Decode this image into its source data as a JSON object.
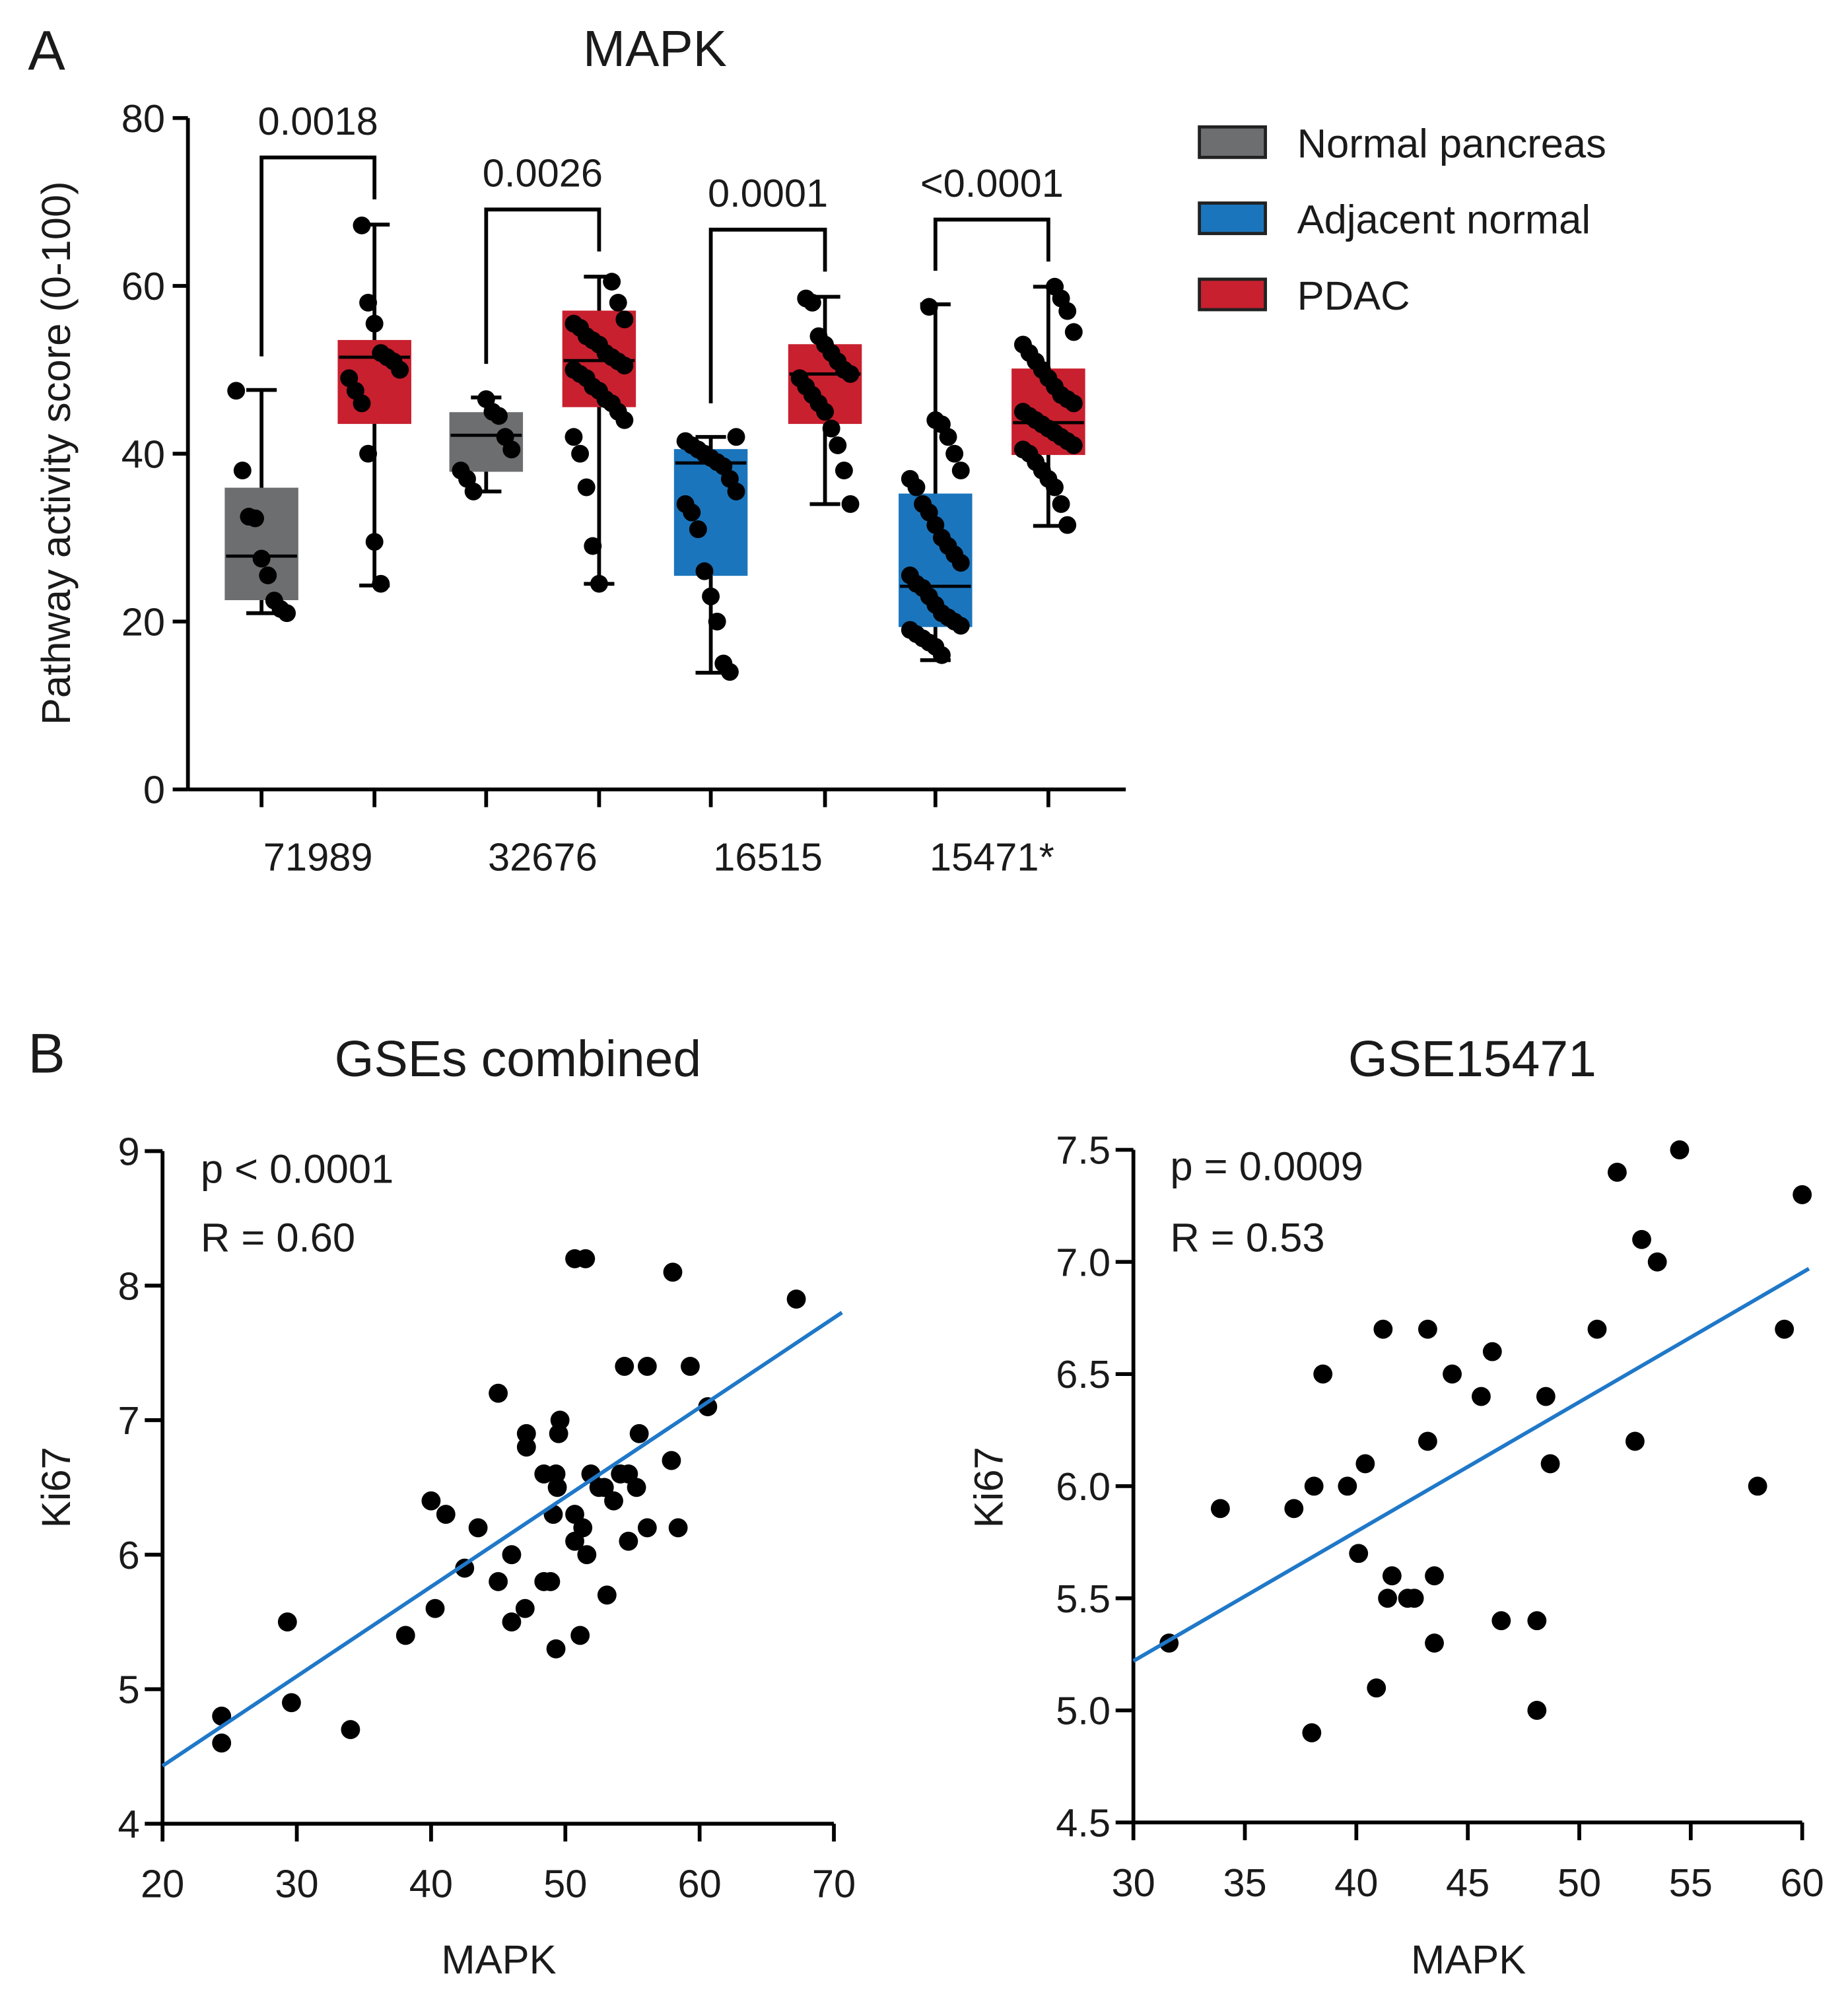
{
  "panel_labels": [
    "A",
    "B"
  ],
  "colors": {
    "normal_pancreas": "#6d6e70",
    "adjacent_normal": "#1b75bc",
    "pdac": "#c8202f",
    "fit_line": "#1f78c8",
    "points": "#000000"
  },
  "chart_data": [
    {
      "type": "box",
      "title": "MAPK",
      "ylabel": "Pathway activity score (0-100)",
      "xlabel": "",
      "ylim": [
        0,
        80
      ],
      "yticks": [
        0,
        20,
        40,
        60,
        80
      ],
      "categories": [
        "71989",
        "32676",
        "16515",
        "15471*"
      ],
      "legend": {
        "placement": "right",
        "entries": [
          {
            "name": "Normal pancreas",
            "color": "#6d6e70"
          },
          {
            "name": "Adjacent normal",
            "color": "#1b75bc"
          },
          {
            "name": "PDAC",
            "color": "#c8202f"
          }
        ]
      },
      "p_values": [
        "0.0018",
        "0.0026",
        "0.0001",
        "<0.0001"
      ],
      "boxes": [
        {
          "category": "71989",
          "group": "Normal pancreas",
          "min": 21.0,
          "q1": 22.7,
          "median": 27.8,
          "q3": 35.8,
          "max": 47.6,
          "points": [
            47.5,
            38,
            32.5,
            32.3,
            27.5,
            25.5,
            22.5,
            21.5,
            21
          ]
        },
        {
          "category": "71989",
          "group": "PDAC",
          "min": 24.3,
          "q1": 43.7,
          "median": 51.5,
          "q3": 53.4,
          "max": 67.3,
          "points": [
            67.2,
            58,
            55.5,
            52,
            51.5,
            51,
            50,
            49,
            47.5,
            46,
            40,
            29.5,
            24.5
          ]
        },
        {
          "category": "32676",
          "group": "Normal pancreas",
          "min": 35.5,
          "q1": 38.0,
          "median": 42.2,
          "q3": 44.8,
          "max": 46.7,
          "points": [
            46.5,
            45,
            44.5,
            42,
            40.5,
            38,
            37,
            35.5
          ]
        },
        {
          "category": "32676",
          "group": "PDAC",
          "min": 24.5,
          "q1": 45.7,
          "median": 51.1,
          "q3": 56.9,
          "max": 61.1,
          "points": [
            60.5,
            58,
            56,
            55.5,
            55,
            54,
            53.5,
            53,
            52,
            51.5,
            51,
            50.5,
            50,
            49.5,
            49,
            48,
            47.5,
            46.5,
            46,
            45,
            44,
            42,
            40,
            36,
            29,
            24.5
          ]
        },
        {
          "category": "16515",
          "group": "Adjacent normal",
          "min": 13.9,
          "q1": 25.6,
          "median": 38.9,
          "q3": 40.4,
          "max": 42.0,
          "points": [
            42,
            41.5,
            41,
            40.5,
            40,
            39.5,
            39,
            38.5,
            37,
            35.5,
            34,
            33,
            31,
            26,
            23,
            20,
            15,
            14
          ]
        },
        {
          "category": "16515",
          "group": "PDAC",
          "min": 34.0,
          "q1": 43.7,
          "median": 49.5,
          "q3": 52.9,
          "max": 58.7,
          "points": [
            58.5,
            58,
            54,
            53,
            52,
            51,
            50,
            49.5,
            49,
            48,
            47,
            46,
            45,
            43,
            41,
            38,
            34
          ]
        },
        {
          "category": "15471*",
          "group": "Adjacent normal",
          "min": 15.4,
          "q1": 19.5,
          "median": 24.2,
          "q3": 35.1,
          "max": 57.8,
          "points": [
            57.5,
            44,
            43.5,
            42,
            40,
            38,
            37,
            36,
            34,
            33,
            31.5,
            30,
            29,
            28,
            27,
            25.5,
            24.5,
            24,
            23,
            22,
            21,
            20.5,
            20,
            19.5,
            19,
            18.5,
            18,
            17.5,
            17,
            16
          ]
        },
        {
          "category": "15471*",
          "group": "PDAC",
          "min": 31.4,
          "q1": 40.0,
          "median": 43.7,
          "q3": 50.0,
          "max": 59.9,
          "points": [
            59.9,
            58.5,
            57,
            54.5,
            53,
            52,
            51,
            50,
            49,
            48,
            47,
            46.5,
            46,
            45,
            44.5,
            44,
            43.5,
            43,
            42.5,
            42,
            41.5,
            41,
            40.5,
            40,
            39,
            38,
            37,
            36,
            34,
            31.5
          ]
        }
      ]
    },
    {
      "type": "scatter",
      "title": "GSEs combined",
      "xlabel": "MAPK",
      "ylabel": "Ki67",
      "xlim": [
        20,
        70
      ],
      "ylim": [
        4,
        9
      ],
      "xticks": [
        20,
        30,
        40,
        50,
        60,
        70
      ],
      "yticks": [
        4,
        5,
        6,
        7,
        8,
        9
      ],
      "annotations": [
        "p < 0.0001",
        "R = 0.60"
      ],
      "fit_line": [
        [
          20,
          4.43
        ],
        [
          70.6,
          7.8
        ]
      ],
      "points": [
        [
          24.4,
          4.8
        ],
        [
          24.4,
          4.6
        ],
        [
          29.3,
          5.5
        ],
        [
          29.6,
          4.9
        ],
        [
          34.0,
          4.7
        ],
        [
          38.1,
          5.4
        ],
        [
          40.0,
          6.4
        ],
        [
          40.3,
          5.6
        ],
        [
          41.1,
          6.3
        ],
        [
          42.5,
          5.9
        ],
        [
          43.5,
          6.2
        ],
        [
          45.0,
          7.2
        ],
        [
          45.0,
          5.8
        ],
        [
          46.0,
          6.0
        ],
        [
          46.0,
          5.5
        ],
        [
          47.0,
          5.6
        ],
        [
          47.1,
          6.9
        ],
        [
          47.1,
          6.8
        ],
        [
          48.4,
          6.6
        ],
        [
          48.4,
          5.8
        ],
        [
          48.9,
          5.8
        ],
        [
          49.1,
          6.3
        ],
        [
          49.3,
          6.6
        ],
        [
          49.4,
          6.5
        ],
        [
          49.3,
          5.3
        ],
        [
          49.5,
          6.9
        ],
        [
          49.6,
          7.0
        ],
        [
          50.7,
          8.2
        ],
        [
          51.5,
          8.2
        ],
        [
          50.7,
          6.3
        ],
        [
          50.7,
          6.1
        ],
        [
          51.3,
          6.2
        ],
        [
          51.6,
          6.0
        ],
        [
          51.1,
          5.4
        ],
        [
          51.9,
          6.6
        ],
        [
          52.5,
          6.5
        ],
        [
          52.9,
          6.5
        ],
        [
          53.1,
          5.7
        ],
        [
          53.6,
          6.4
        ],
        [
          54.1,
          6.6
        ],
        [
          54.7,
          6.6
        ],
        [
          54.4,
          7.4
        ],
        [
          54.7,
          6.1
        ],
        [
          55.3,
          6.5
        ],
        [
          55.5,
          6.9
        ],
        [
          56.1,
          7.4
        ],
        [
          56.1,
          6.2
        ],
        [
          57.9,
          6.7
        ],
        [
          58.0,
          8.1
        ],
        [
          58.4,
          6.2
        ],
        [
          59.3,
          7.4
        ],
        [
          60.6,
          7.1
        ],
        [
          67.2,
          7.9
        ]
      ]
    },
    {
      "type": "scatter",
      "title": "GSE15471",
      "xlabel": "MAPK",
      "ylabel": "Ki67",
      "xlim": [
        30,
        60
      ],
      "ylim": [
        4.5,
        7.5
      ],
      "xticks": [
        30,
        35,
        40,
        45,
        50,
        55,
        60
      ],
      "yticks": [
        "4.5",
        "5.0",
        "5.5",
        "6.0",
        "6.5",
        "7.0",
        "7.5"
      ],
      "annotations": [
        "p = 0.0009",
        "R = 0.53"
      ],
      "fit_line": [
        [
          30,
          5.22
        ],
        [
          60.3,
          6.97
        ]
      ],
      "points": [
        [
          31.6,
          5.3
        ],
        [
          33.9,
          5.9
        ],
        [
          37.2,
          5.9
        ],
        [
          38.1,
          6.0
        ],
        [
          38.0,
          4.9
        ],
        [
          38.5,
          6.5
        ],
        [
          39.6,
          6.0
        ],
        [
          40.4,
          6.1
        ],
        [
          40.1,
          5.7
        ],
        [
          40.9,
          5.1
        ],
        [
          41.2,
          6.7
        ],
        [
          41.4,
          5.5
        ],
        [
          41.6,
          5.6
        ],
        [
          42.3,
          5.5
        ],
        [
          42.6,
          5.5
        ],
        [
          43.2,
          6.7
        ],
        [
          43.2,
          6.2
        ],
        [
          43.5,
          5.6
        ],
        [
          43.5,
          5.3
        ],
        [
          44.3,
          6.5
        ],
        [
          45.6,
          6.4
        ],
        [
          46.1,
          6.6
        ],
        [
          46.5,
          5.4
        ],
        [
          48.1,
          5.4
        ],
        [
          48.1,
          5.0
        ],
        [
          48.5,
          6.4
        ],
        [
          48.7,
          6.1
        ],
        [
          50.8,
          6.7
        ],
        [
          51.7,
          7.4
        ],
        [
          52.5,
          6.2
        ],
        [
          52.8,
          7.1
        ],
        [
          53.5,
          7.0
        ],
        [
          54.5,
          7.5
        ],
        [
          58.0,
          6.0
        ],
        [
          59.2,
          6.7
        ],
        [
          60.0,
          7.3
        ]
      ]
    }
  ]
}
